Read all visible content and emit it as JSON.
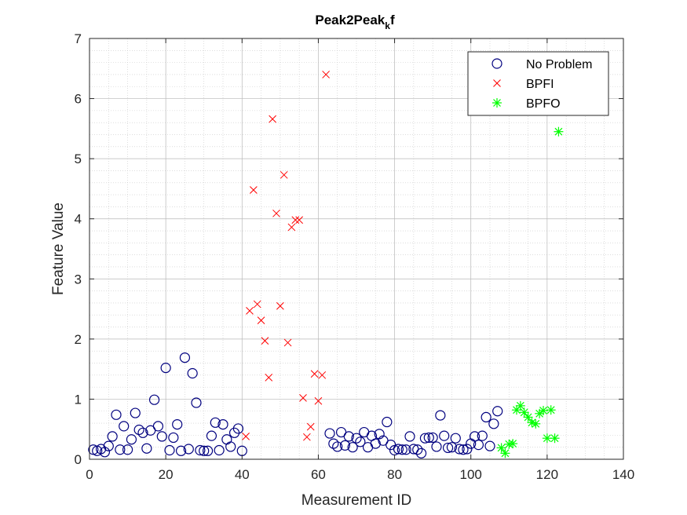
{
  "chart_data": {
    "type": "scatter",
    "title_main": "Peak2Peak",
    "title_sub": "k",
    "title_tail": "f",
    "xlabel": "Measurement ID",
    "ylabel": "Feature Value",
    "xlim": [
      0,
      140
    ],
    "ylim": [
      0,
      7
    ],
    "xticks": [
      "0",
      "20",
      "40",
      "60",
      "80",
      "100",
      "120",
      "140"
    ],
    "yticks": [
      "0",
      "1",
      "2",
      "3",
      "4",
      "5",
      "6",
      "7"
    ],
    "grid": true,
    "minor_grid": true,
    "legend_position": "top-right",
    "series": [
      {
        "name": "No Problem",
        "marker": "circle",
        "color": "#00007f",
        "points": [
          [
            1,
            0.16
          ],
          [
            2,
            0.14
          ],
          [
            3,
            0.17
          ],
          [
            4,
            0.12
          ],
          [
            5,
            0.22
          ],
          [
            6,
            0.38
          ],
          [
            7,
            0.74
          ],
          [
            8,
            0.16
          ],
          [
            9,
            0.55
          ],
          [
            10,
            0.16
          ],
          [
            11,
            0.33
          ],
          [
            12,
            0.77
          ],
          [
            13,
            0.49
          ],
          [
            14,
            0.44
          ],
          [
            15,
            0.18
          ],
          [
            16,
            0.48
          ],
          [
            17,
            0.99
          ],
          [
            18,
            0.55
          ],
          [
            19,
            0.38
          ],
          [
            20,
            1.52
          ],
          [
            21,
            0.15
          ],
          [
            22,
            0.36
          ],
          [
            23,
            0.58
          ],
          [
            24,
            0.14
          ],
          [
            25,
            1.69
          ],
          [
            26,
            0.17
          ],
          [
            27,
            1.43
          ],
          [
            28,
            0.94
          ],
          [
            29,
            0.15
          ],
          [
            30,
            0.14
          ],
          [
            31,
            0.14
          ],
          [
            32,
            0.39
          ],
          [
            33,
            0.61
          ],
          [
            34,
            0.15
          ],
          [
            35,
            0.58
          ],
          [
            36,
            0.33
          ],
          [
            37,
            0.21
          ],
          [
            38,
            0.44
          ],
          [
            39,
            0.51
          ],
          [
            40,
            0.14
          ],
          [
            63,
            0.43
          ],
          [
            64,
            0.26
          ],
          [
            65,
            0.21
          ],
          [
            66,
            0.45
          ],
          [
            67,
            0.23
          ],
          [
            68,
            0.38
          ],
          [
            69,
            0.2
          ],
          [
            70,
            0.35
          ],
          [
            71,
            0.29
          ],
          [
            72,
            0.45
          ],
          [
            73,
            0.2
          ],
          [
            74,
            0.39
          ],
          [
            75,
            0.26
          ],
          [
            76,
            0.42
          ],
          [
            77,
            0.31
          ],
          [
            78,
            0.62
          ],
          [
            79,
            0.24
          ],
          [
            80,
            0.15
          ],
          [
            81,
            0.17
          ],
          [
            82,
            0.16
          ],
          [
            83,
            0.16
          ],
          [
            84,
            0.38
          ],
          [
            85,
            0.17
          ],
          [
            86,
            0.16
          ],
          [
            87,
            0.1
          ],
          [
            88,
            0.35
          ],
          [
            89,
            0.36
          ],
          [
            90,
            0.36
          ],
          [
            91,
            0.21
          ],
          [
            92,
            0.73
          ],
          [
            93,
            0.39
          ],
          [
            94,
            0.19
          ],
          [
            95,
            0.2
          ],
          [
            96,
            0.35
          ],
          [
            97,
            0.17
          ],
          [
            98,
            0.16
          ],
          [
            99,
            0.17
          ],
          [
            100,
            0.26
          ],
          [
            101,
            0.38
          ],
          [
            102,
            0.24
          ],
          [
            103,
            0.39
          ],
          [
            104,
            0.7
          ],
          [
            105,
            0.22
          ],
          [
            106,
            0.59
          ],
          [
            107,
            0.8
          ]
        ]
      },
      {
        "name": "BPFI",
        "marker": "x",
        "color": "#ff0000",
        "points": [
          [
            41,
            0.38
          ],
          [
            42,
            2.47
          ],
          [
            43,
            4.48
          ],
          [
            44,
            2.58
          ],
          [
            45,
            2.31
          ],
          [
            46,
            1.97
          ],
          [
            47,
            1.36
          ],
          [
            48,
            5.66
          ],
          [
            49,
            4.09
          ],
          [
            50,
            2.55
          ],
          [
            51,
            4.73
          ],
          [
            52,
            1.94
          ],
          [
            53,
            3.86
          ],
          [
            54,
            3.98
          ],
          [
            55,
            3.98
          ],
          [
            56,
            1.02
          ],
          [
            57,
            0.37
          ],
          [
            58,
            0.54
          ],
          [
            59,
            1.42
          ],
          [
            60,
            0.97
          ],
          [
            61,
            1.4
          ],
          [
            62,
            6.4
          ]
        ]
      },
      {
        "name": "BPFO",
        "marker": "star",
        "color": "#00ff00",
        "points": [
          [
            108,
            0.19
          ],
          [
            109,
            0.1
          ],
          [
            110,
            0.25
          ],
          [
            111,
            0.26
          ],
          [
            112,
            0.82
          ],
          [
            113,
            0.89
          ],
          [
            114,
            0.78
          ],
          [
            115,
            0.7
          ],
          [
            116,
            0.61
          ],
          [
            117,
            0.59
          ],
          [
            118,
            0.76
          ],
          [
            119,
            0.81
          ],
          [
            120,
            0.35
          ],
          [
            121,
            0.82
          ],
          [
            122,
            0.35
          ],
          [
            123,
            5.45
          ]
        ]
      }
    ]
  }
}
